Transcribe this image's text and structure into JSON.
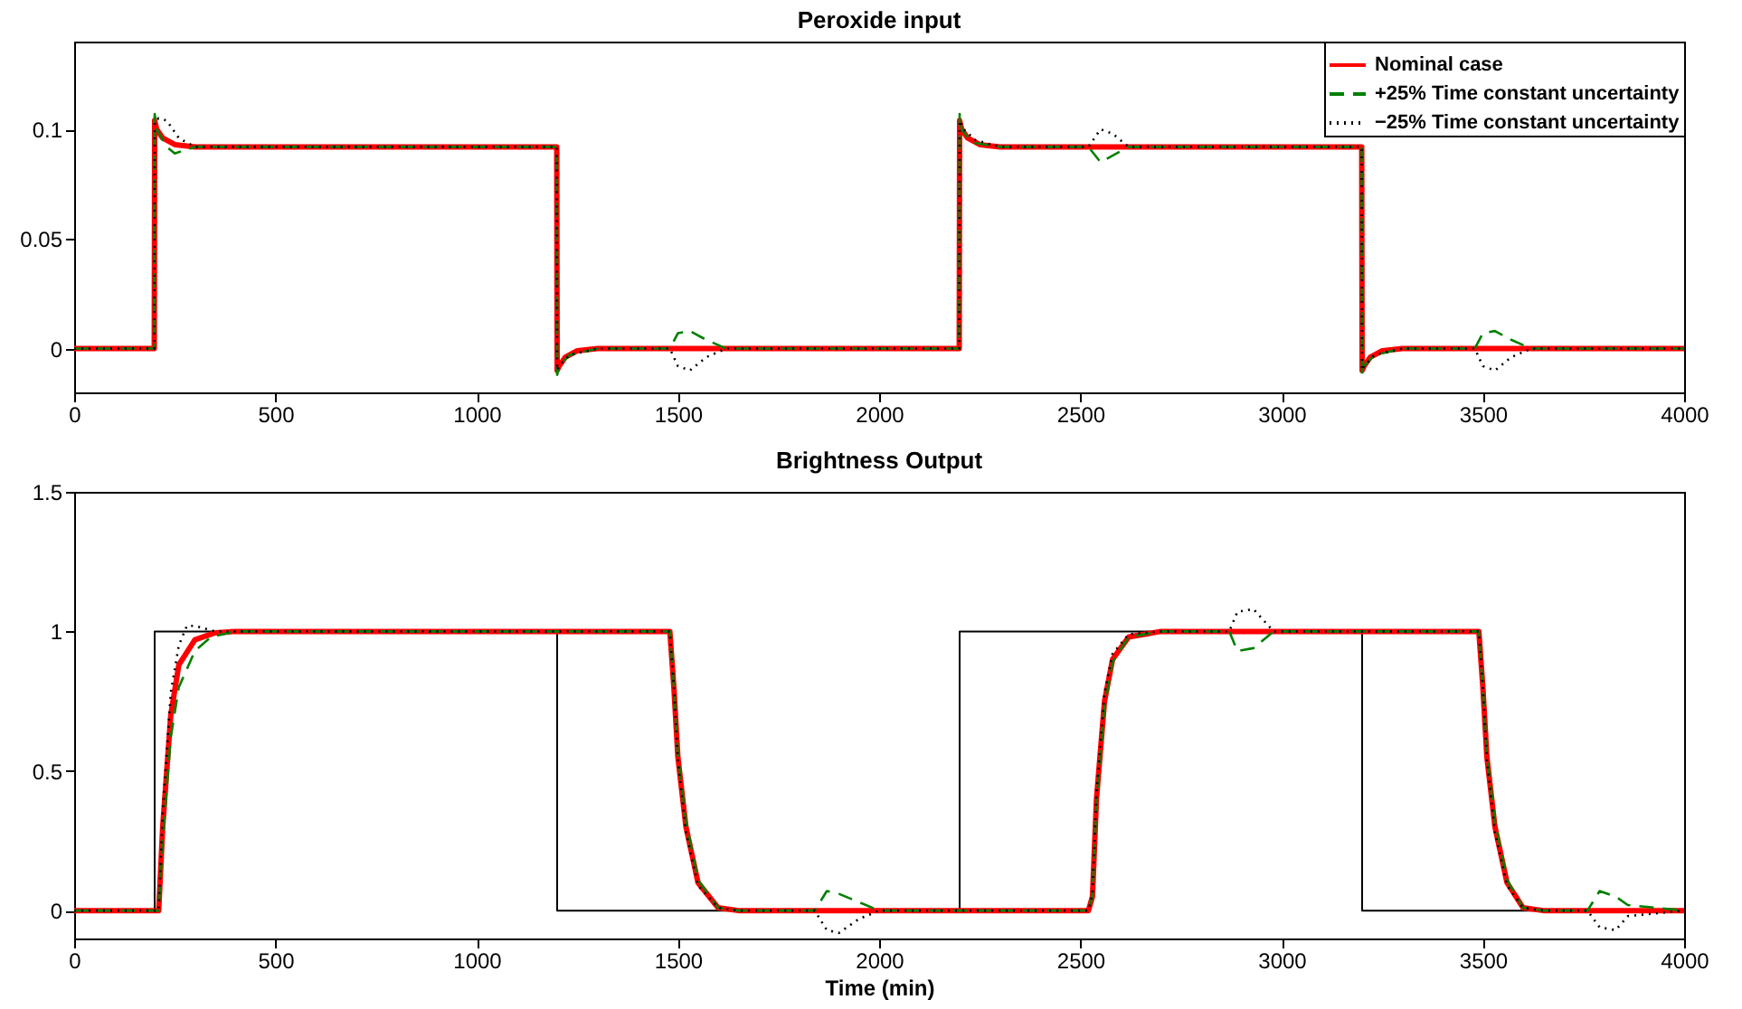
{
  "chart_data": [
    {
      "type": "line",
      "title": "Peroxide input",
      "xlim": [
        0,
        4000
      ],
      "xticks": [
        0,
        500,
        1000,
        1500,
        2000,
        2500,
        3000,
        3500,
        4000
      ],
      "ylim": [
        -0.02,
        0.14
      ],
      "yticks": [
        0,
        0.05,
        0.1
      ],
      "legend": "top right",
      "grid": false,
      "series": [
        {
          "name": "Nominal case",
          "color": "#ff0000",
          "line_style": "solid",
          "x": [
            0,
            199,
            200,
            205,
            220,
            250,
            300,
            1199,
            1200,
            1205,
            1220,
            1250,
            1300,
            2199,
            2200,
            2205,
            2220,
            2250,
            2300,
            3199,
            3200,
            3205,
            3220,
            3250,
            3300,
            4000
          ],
          "values": [
            0,
            0,
            0.104,
            0.1,
            0.096,
            0.093,
            0.092,
            0.092,
            -0.01,
            -0.008,
            -0.004,
            -0.001,
            0,
            0,
            0.104,
            0.1,
            0.096,
            0.093,
            0.092,
            0.092,
            -0.01,
            -0.008,
            -0.004,
            -0.001,
            0,
            0
          ]
        },
        {
          "name": "+25% Time constant uncertainty",
          "color": "#008000",
          "line_style": "dashed",
          "x": [
            0,
            199,
            200,
            205,
            230,
            250,
            300,
            1199,
            1200,
            1205,
            1230,
            1300,
            1480,
            1500,
            1530,
            1570,
            1620,
            2199,
            2200,
            2205,
            2230,
            2300,
            2520,
            2550,
            2580,
            2620,
            3199,
            3200,
            3205,
            3230,
            3300,
            3480,
            3500,
            3530,
            3570,
            3620,
            4000
          ],
          "values": [
            0,
            0,
            0.107,
            0.1,
            0.092,
            0.089,
            0.092,
            0.092,
            -0.012,
            -0.008,
            -0.003,
            0,
            0,
            0.007,
            0.008,
            0.004,
            0,
            0,
            0.107,
            0.1,
            0.094,
            0.092,
            0.092,
            0.085,
            0.088,
            0.092,
            0.092,
            -0.012,
            -0.008,
            -0.003,
            0,
            0,
            0.007,
            0.008,
            0.004,
            0,
            0
          ]
        },
        {
          "name": "−25% Time constant uncertainty",
          "color": "#000000",
          "line_style": "dotted",
          "x": [
            0,
            199,
            200,
            210,
            230,
            260,
            300,
            1199,
            1200,
            1205,
            1230,
            1300,
            1480,
            1500,
            1530,
            1570,
            1620,
            2199,
            2200,
            2210,
            2240,
            2300,
            2520,
            2550,
            2580,
            2620,
            3199,
            3200,
            3205,
            3230,
            3300,
            3480,
            3500,
            3530,
            3570,
            3620,
            4000
          ],
          "values": [
            0,
            0,
            0.104,
            0.105,
            0.104,
            0.096,
            0.092,
            0.092,
            -0.01,
            -0.008,
            -0.003,
            0,
            0,
            -0.008,
            -0.01,
            -0.004,
            0,
            0,
            0.104,
            0.1,
            0.095,
            0.092,
            0.092,
            0.1,
            0.098,
            0.092,
            0.092,
            -0.01,
            -0.008,
            -0.003,
            0,
            0,
            -0.008,
            -0.01,
            -0.004,
            0,
            0
          ]
        }
      ]
    },
    {
      "type": "line",
      "title": "Brightness Output",
      "xlabel": "Time (min)",
      "xlim": [
        0,
        4000
      ],
      "xticks": [
        0,
        500,
        1000,
        1500,
        2000,
        2500,
        3000,
        3500,
        4000
      ],
      "ylim": [
        -0.1,
        1.5
      ],
      "yticks": [
        0,
        0.5,
        1,
        1.5
      ],
      "grid": false,
      "series": [
        {
          "color": "#000000",
          "line_style": "solid",
          "x": [
            0,
            200,
            200,
            1200,
            1200,
            2200,
            2200,
            3200,
            3200,
            4000
          ],
          "values": [
            0,
            0,
            1,
            1,
            0,
            0,
            1,
            1,
            0,
            0
          ]
        },
        {
          "color": "#ff0000",
          "line_style": "solid",
          "x": [
            0,
            210,
            220,
            240,
            260,
            300,
            350,
            400,
            1480,
            1490,
            1500,
            1520,
            1550,
            1600,
            1650,
            2520,
            2530,
            2540,
            2560,
            2580,
            2620,
            2700,
            3490,
            3500,
            3510,
            3530,
            3560,
            3600,
            3650,
            4000
          ],
          "values": [
            0,
            0,
            0.3,
            0.7,
            0.88,
            0.97,
            0.995,
            1,
            1,
            0.8,
            0.55,
            0.3,
            0.1,
            0.01,
            0,
            0,
            0.05,
            0.4,
            0.75,
            0.9,
            0.98,
            1,
            1,
            0.8,
            0.55,
            0.3,
            0.1,
            0.01,
            0,
            0
          ]
        },
        {
          "color": "#008000",
          "line_style": "dashed",
          "x": [
            0,
            210,
            220,
            240,
            260,
            300,
            340,
            400,
            1480,
            1490,
            1500,
            1520,
            1550,
            1600,
            1650,
            1840,
            1870,
            1900,
            1950,
            2000,
            2520,
            2530,
            2540,
            2560,
            2580,
            2620,
            2700,
            2870,
            2890,
            2930,
            2980,
            3490,
            3500,
            3510,
            3530,
            3560,
            3600,
            3650,
            3760,
            3790,
            3830,
            3860,
            4000
          ],
          "values": [
            0,
            0,
            0.25,
            0.62,
            0.8,
            0.93,
            0.98,
            1,
            1,
            0.8,
            0.56,
            0.32,
            0.11,
            0.01,
            0,
            0,
            0.07,
            0.06,
            0.03,
            0,
            0,
            0.05,
            0.38,
            0.73,
            0.89,
            0.98,
            1,
            1,
            0.93,
            0.94,
            1,
            1,
            0.8,
            0.56,
            0.32,
            0.11,
            0.01,
            0,
            0,
            0.07,
            0.05,
            0.02,
            0
          ]
        },
        {
          "color": "#000000",
          "line_style": "dotted",
          "x": [
            0,
            210,
            220,
            240,
            260,
            280,
            300,
            350,
            400,
            1480,
            1490,
            1500,
            1520,
            1550,
            1600,
            1650,
            1840,
            1870,
            1900,
            1950,
            2000,
            2520,
            2530,
            2540,
            2560,
            2580,
            2620,
            2700,
            2870,
            2890,
            2930,
            2980,
            3490,
            3500,
            3510,
            3530,
            3560,
            3600,
            3650,
            3760,
            3790,
            3830,
            3860,
            4000
          ],
          "values": [
            0,
            0,
            0.35,
            0.78,
            0.95,
            1.02,
            1.02,
            1,
            1,
            1,
            0.8,
            0.54,
            0.28,
            0.09,
            0.01,
            0,
            0,
            -0.07,
            -0.08,
            -0.03,
            0,
            0,
            0.06,
            0.42,
            0.78,
            0.92,
            0.99,
            1,
            1,
            1.07,
            1.08,
            1,
            1,
            0.8,
            0.54,
            0.28,
            0.09,
            0.01,
            0,
            0,
            -0.06,
            -0.07,
            -0.02,
            0
          ]
        }
      ]
    }
  ]
}
